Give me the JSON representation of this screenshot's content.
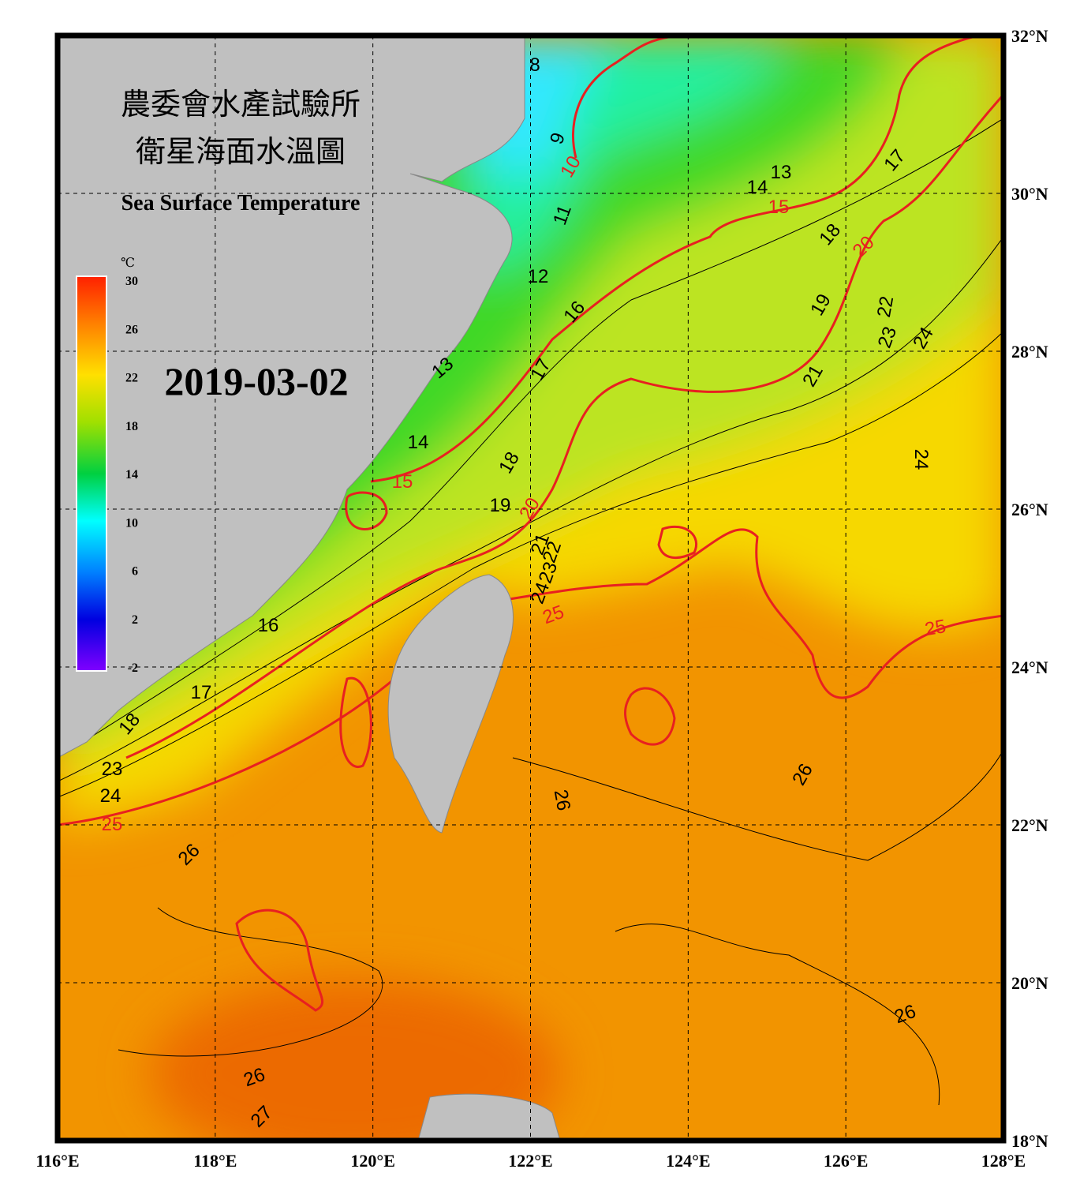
{
  "header": {
    "title_zh_1": "農委會水產試驗所",
    "title_zh_2": "衛星海面水溫圖",
    "title_en": "Sea Surface Temperature",
    "date": "2019-03-02"
  },
  "colorbar": {
    "unit": "℃",
    "ticks": [
      30,
      26,
      22,
      18,
      14,
      10,
      6,
      2,
      -2
    ]
  },
  "axes": {
    "lon_labels": [
      "116°E",
      "118°E",
      "120°E",
      "122°E",
      "124°E",
      "126°E",
      "128°E"
    ],
    "lat_labels": [
      "32°N",
      "30°N",
      "28°N",
      "26°N",
      "24°N",
      "22°N",
      "20°N",
      "18°N"
    ]
  },
  "contour_labels": [
    "8",
    "9",
    "10",
    "11",
    "12",
    "13",
    "14",
    "15",
    "16",
    "17",
    "18",
    "19",
    "20",
    "21",
    "22",
    "23",
    "24",
    "25",
    "13",
    "14",
    "15",
    "17",
    "18",
    "20",
    "19",
    "22",
    "23",
    "24",
    "21",
    "24",
    "25",
    "16",
    "17",
    "18",
    "23",
    "24",
    "25",
    "26",
    "26",
    "26",
    "26",
    "26",
    "27"
  ]
}
